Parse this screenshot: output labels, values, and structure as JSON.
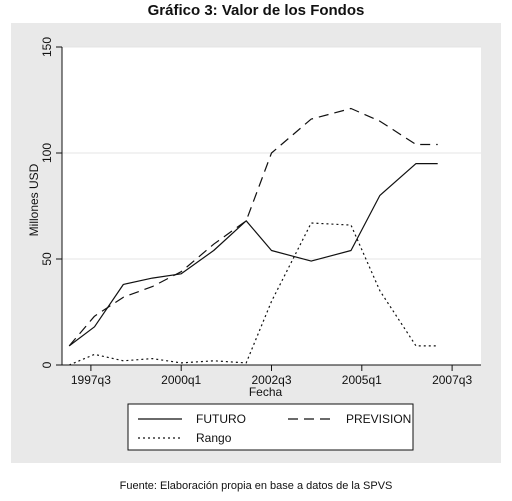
{
  "figure_title": "Gráfico  3: Valor de los Fondos",
  "source_note": "Fuente: Elaboración propia en base a datos de la SPVS",
  "colors": {
    "frame_bg": "#e9e9e9",
    "plot_bg": "#ffffff",
    "gridline": "#e4e4e4",
    "line": "#111111"
  },
  "chart_data": {
    "type": "line",
    "title": "",
    "xlabel": "Fecha",
    "ylabel": "Millones USD",
    "xlim": [
      1996.7,
      2008.3
    ],
    "ylim": [
      0,
      150
    ],
    "x_ticks": [
      {
        "value": 1997.5,
        "label": "1997q3"
      },
      {
        "value": 2000.0,
        "label": "2000q1"
      },
      {
        "value": 2002.5,
        "label": "2002q3"
      },
      {
        "value": 2005.0,
        "label": "2005q1"
      },
      {
        "value": 2007.5,
        "label": "2007q3"
      }
    ],
    "y_ticks": [
      {
        "value": 0,
        "label": "0"
      },
      {
        "value": 50,
        "label": "50"
      },
      {
        "value": 100,
        "label": "100"
      },
      {
        "value": 150,
        "label": "150"
      }
    ],
    "grid": {
      "horizontal": true,
      "vertical": false
    },
    "legend": {
      "placement": "bottom",
      "columns": 2
    },
    "series": [
      {
        "name": "FUTURO",
        "style": "solid",
        "x": [
          1996.9,
          1997.6,
          1998.4,
          1999.2,
          2000.0,
          2000.9,
          2001.8,
          2002.5,
          2003.6,
          2004.7,
          2005.5,
          2006.5,
          2007.1
        ],
        "y": [
          9,
          18,
          38,
          41,
          43,
          54,
          68,
          54,
          49,
          54,
          80,
          95,
          95
        ]
      },
      {
        "name": "PREVISION",
        "style": "dashed",
        "x": [
          1996.9,
          1997.6,
          1998.4,
          1999.2,
          2000.0,
          2000.9,
          2001.8,
          2002.5,
          2003.6,
          2004.7,
          2005.5,
          2006.5,
          2007.1
        ],
        "y": [
          9,
          23,
          32,
          37,
          44,
          57,
          68,
          100,
          116,
          121,
          115,
          104,
          104
        ]
      },
      {
        "name": "Rango",
        "style": "dotted",
        "x": [
          1996.9,
          1997.6,
          1998.4,
          1999.2,
          2000.0,
          2000.9,
          2001.8,
          2002.5,
          2003.6,
          2004.7,
          2005.5,
          2006.5,
          2007.1
        ],
        "y": [
          0,
          5,
          2,
          3,
          1,
          2,
          1,
          30,
          67,
          66,
          35,
          9,
          9
        ]
      }
    ]
  }
}
